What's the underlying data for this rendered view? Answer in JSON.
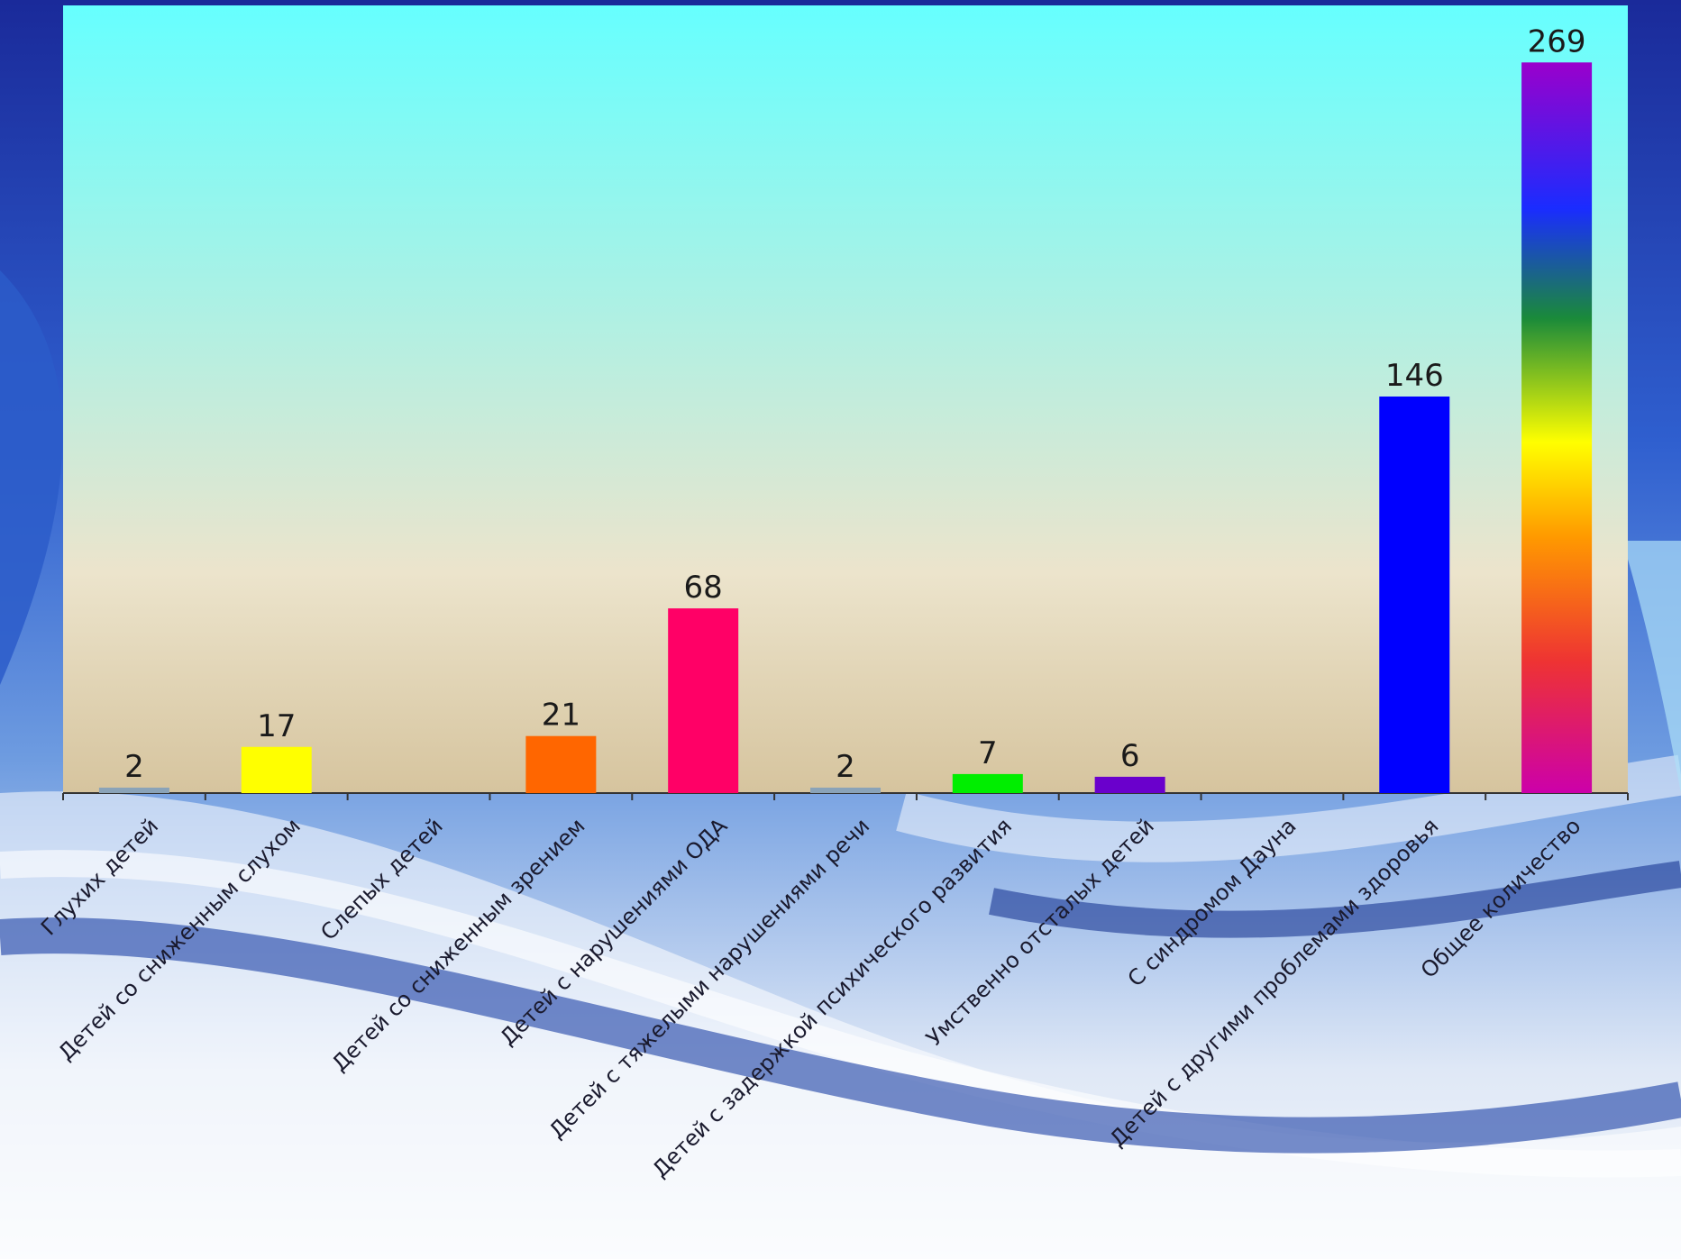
{
  "chart_data": {
    "type": "bar",
    "categories": [
      "Глухих детей",
      "Детей со сниженным слухом",
      "Слепых детей",
      "Детей со сниженным зрением",
      "Детей с нарушениями ОДА",
      "Детей с тяжелыми нарушениями речи",
      "Детей с задержкой психического развития",
      "Умственно отсталых детей",
      "С синдромом Дауна",
      "Детей с другими проблемами здоровья",
      "Общее количество"
    ],
    "values": [
      2,
      17,
      null,
      21,
      68,
      2,
      7,
      6,
      null,
      146,
      269
    ],
    "data_labels": [
      "2",
      "17",
      "",
      "21",
      "68",
      "2",
      "7",
      "6",
      "",
      "146",
      "269"
    ],
    "bar_colors": [
      "#8aa3b8",
      "#ffff00",
      "#cccccc",
      "#ff6600",
      "#ff0066",
      "#8aa3b8",
      "#00ee00",
      "#6a00cc",
      "#cccccc",
      "#0000ff",
      "rainbow"
    ],
    "ylim": [
      0,
      290
    ],
    "grid": false,
    "legend": "none",
    "title": "",
    "xlabel": "",
    "ylabel": ""
  },
  "colors": {
    "plot_bg_top": "#66ffff",
    "plot_bg_mid": "#ece4cc",
    "plot_bg_bottom": "#d6c49e"
  }
}
